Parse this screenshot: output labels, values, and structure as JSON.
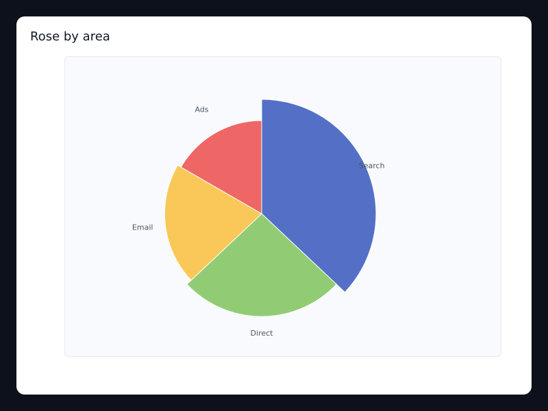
{
  "chart_data": {
    "type": "rose",
    "title": "Rose by area",
    "categories": [
      "Search",
      "Direct",
      "Email",
      "Ads"
    ],
    "values": [
      40,
      28,
      22,
      18
    ],
    "colors": [
      "#5470c6",
      "#91cc75",
      "#fac858",
      "#ee6666"
    ]
  }
}
